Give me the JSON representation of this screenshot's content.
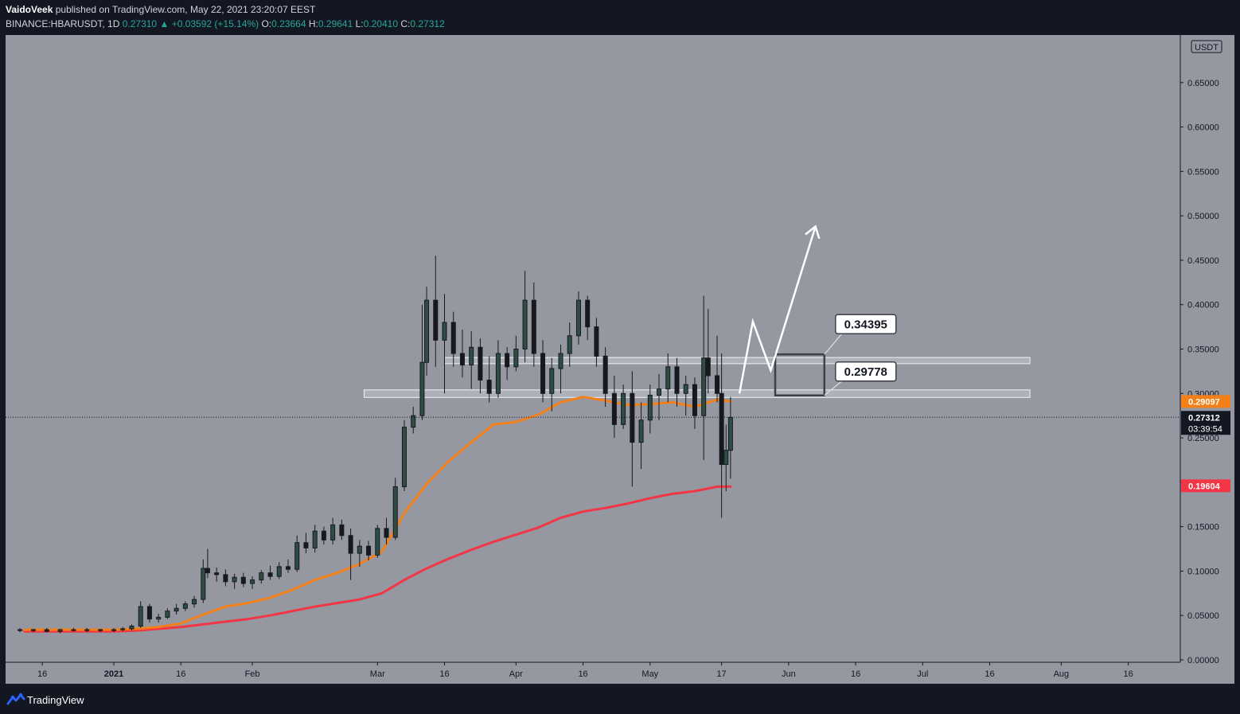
{
  "header": {
    "author": "VaidoVeek",
    "published_text": "published on TradingView.com, May 22, 2021 23:20:07 EEST",
    "symbol": "BINANCE:HBARUSDT, 1D",
    "last": "0.27310",
    "change": "+0.03592 (+15.14%)",
    "o_label": "O:",
    "o": "0.23664",
    "h_label": "H:",
    "h": "0.29641",
    "l_label": "L:",
    "l": "0.20410",
    "c_label": "C:",
    "c": "0.27312"
  },
  "footer": {
    "brand": "TradingView"
  },
  "colors": {
    "background": "#131722",
    "plot": "#9598a1",
    "ma_fast": "#f57f17",
    "ma_slow": "#f23645",
    "candle_up": "#2e4d44",
    "candle_down": "#161a1e",
    "zone": "#dcdfe6",
    "arrow": "#ffffff"
  },
  "chart_data": {
    "type": "candlestick",
    "currency_label": "USDT",
    "ylim": [
      0,
      0.7
    ],
    "y_ticks": [
      "0.00000",
      "0.05000",
      "0.10000",
      "0.15000",
      "0.20000",
      "0.25000",
      "0.30000",
      "0.35000",
      "0.40000",
      "0.45000",
      "0.50000",
      "0.55000",
      "0.60000",
      "0.65000"
    ],
    "x_ticks": [
      {
        "label": "16",
        "day": -16
      },
      {
        "label": "2021",
        "day": 0
      },
      {
        "label": "16",
        "day": 15
      },
      {
        "label": "Feb",
        "day": 31
      },
      {
        "label": "Mar",
        "day": 59
      },
      {
        "label": "16",
        "day": 74
      },
      {
        "label": "Apr",
        "day": 90
      },
      {
        "label": "16",
        "day": 105
      },
      {
        "label": "May",
        "day": 120
      },
      {
        "label": "17",
        "day": 136
      },
      {
        "label": "Jun",
        "day": 151
      },
      {
        "label": "16",
        "day": 166
      },
      {
        "label": "Jul",
        "day": 181
      },
      {
        "label": "16",
        "day": 196
      },
      {
        "label": "Aug",
        "day": 212
      },
      {
        "label": "16",
        "day": 227
      }
    ],
    "price_badges": [
      {
        "name": "ma-fast-price",
        "value": "0.29097",
        "price": 0.29097,
        "color": "#f57f17"
      },
      {
        "name": "last-price",
        "value": "0.27312",
        "price": 0.27312,
        "sub": "03:39:54",
        "color": "#131722"
      },
      {
        "name": "ma-slow-price",
        "value": "0.19604",
        "price": 0.19604,
        "color": "#f23645"
      }
    ],
    "last_price": 0.27312,
    "zones": [
      {
        "name": "resistance-zone",
        "price_low": 0.3335,
        "price_high": 0.3405,
        "day_start": 74,
        "day_end": 205
      },
      {
        "name": "support-zone",
        "price_low": 0.2955,
        "price_high": 0.304,
        "day_start": 56,
        "day_end": 205
      }
    ],
    "target_box": {
      "day_start": 148,
      "day_end": 159,
      "price_low": 0.2978,
      "price_high": 0.344
    },
    "callouts": [
      {
        "name": "callout-upper",
        "label": "0.34395",
        "price": 0.34395
      },
      {
        "name": "callout-lower",
        "label": "0.29778",
        "price": 0.29778
      }
    ],
    "projection_path": [
      [
        140,
        0.3
      ],
      [
        143,
        0.381
      ],
      [
        147,
        0.326
      ],
      [
        157,
        0.488
      ]
    ],
    "ma_fast": [
      [
        -20,
        0.034
      ],
      [
        0,
        0.034
      ],
      [
        5,
        0.035
      ],
      [
        10,
        0.037
      ],
      [
        15,
        0.041
      ],
      [
        20,
        0.051
      ],
      [
        25,
        0.06
      ],
      [
        30,
        0.064
      ],
      [
        35,
        0.07
      ],
      [
        40,
        0.079
      ],
      [
        45,
        0.09
      ],
      [
        50,
        0.098
      ],
      [
        55,
        0.108
      ],
      [
        60,
        0.122
      ],
      [
        65,
        0.165
      ],
      [
        70,
        0.198
      ],
      [
        75,
        0.224
      ],
      [
        80,
        0.245
      ],
      [
        85,
        0.265
      ],
      [
        90,
        0.268
      ],
      [
        95,
        0.276
      ],
      [
        100,
        0.29
      ],
      [
        105,
        0.296
      ],
      [
        110,
        0.292
      ],
      [
        115,
        0.287
      ],
      [
        120,
        0.288
      ],
      [
        125,
        0.29
      ],
      [
        130,
        0.285
      ],
      [
        135,
        0.293
      ],
      [
        138,
        0.291
      ]
    ],
    "ma_slow": [
      [
        -20,
        0.032
      ],
      [
        0,
        0.032
      ],
      [
        5,
        0.033
      ],
      [
        10,
        0.035
      ],
      [
        15,
        0.037
      ],
      [
        20,
        0.04
      ],
      [
        25,
        0.043
      ],
      [
        30,
        0.046
      ],
      [
        35,
        0.05
      ],
      [
        40,
        0.055
      ],
      [
        45,
        0.06
      ],
      [
        50,
        0.064
      ],
      [
        55,
        0.068
      ],
      [
        60,
        0.075
      ],
      [
        65,
        0.09
      ],
      [
        70,
        0.103
      ],
      [
        75,
        0.114
      ],
      [
        80,
        0.124
      ],
      [
        85,
        0.133
      ],
      [
        90,
        0.141
      ],
      [
        95,
        0.149
      ],
      [
        100,
        0.16
      ],
      [
        105,
        0.167
      ],
      [
        110,
        0.171
      ],
      [
        115,
        0.176
      ],
      [
        120,
        0.182
      ],
      [
        125,
        0.187
      ],
      [
        130,
        0.19
      ],
      [
        135,
        0.195
      ],
      [
        138,
        0.195
      ]
    ],
    "candles": [
      [
        -21,
        0.034,
        0.036,
        0.031,
        0.033
      ],
      [
        -18,
        0.033,
        0.035,
        0.031,
        0.034
      ],
      [
        -15,
        0.034,
        0.036,
        0.031,
        0.032
      ],
      [
        -12,
        0.032,
        0.035,
        0.03,
        0.034
      ],
      [
        -9,
        0.034,
        0.036,
        0.032,
        0.033
      ],
      [
        -6,
        0.033,
        0.036,
        0.031,
        0.034
      ],
      [
        -3,
        0.034,
        0.035,
        0.031,
        0.033
      ],
      [
        0,
        0.033,
        0.036,
        0.031,
        0.034
      ],
      [
        2,
        0.034,
        0.037,
        0.032,
        0.035
      ],
      [
        4,
        0.035,
        0.04,
        0.033,
        0.038
      ],
      [
        6,
        0.038,
        0.066,
        0.036,
        0.06
      ],
      [
        8,
        0.06,
        0.063,
        0.042,
        0.046
      ],
      [
        10,
        0.046,
        0.052,
        0.042,
        0.048
      ],
      [
        12,
        0.048,
        0.058,
        0.046,
        0.055
      ],
      [
        14,
        0.055,
        0.063,
        0.051,
        0.058
      ],
      [
        16,
        0.058,
        0.066,
        0.055,
        0.063
      ],
      [
        18,
        0.063,
        0.072,
        0.059,
        0.068
      ],
      [
        20,
        0.068,
        0.113,
        0.064,
        0.103
      ],
      [
        21,
        0.103,
        0.125,
        0.092,
        0.098
      ],
      [
        23,
        0.098,
        0.104,
        0.088,
        0.096
      ],
      [
        25,
        0.096,
        0.102,
        0.083,
        0.088
      ],
      [
        27,
        0.088,
        0.097,
        0.08,
        0.093
      ],
      [
        29,
        0.093,
        0.098,
        0.082,
        0.086
      ],
      [
        31,
        0.086,
        0.094,
        0.08,
        0.09
      ],
      [
        33,
        0.09,
        0.101,
        0.086,
        0.098
      ],
      [
        35,
        0.098,
        0.106,
        0.09,
        0.094
      ],
      [
        37,
        0.094,
        0.11,
        0.091,
        0.105
      ],
      [
        39,
        0.105,
        0.113,
        0.098,
        0.102
      ],
      [
        41,
        0.102,
        0.14,
        0.099,
        0.132
      ],
      [
        43,
        0.132,
        0.143,
        0.12,
        0.126
      ],
      [
        45,
        0.126,
        0.152,
        0.121,
        0.145
      ],
      [
        47,
        0.145,
        0.15,
        0.13,
        0.135
      ],
      [
        49,
        0.135,
        0.16,
        0.13,
        0.152
      ],
      [
        51,
        0.152,
        0.158,
        0.135,
        0.14
      ],
      [
        53,
        0.14,
        0.148,
        0.09,
        0.12
      ],
      [
        55,
        0.12,
        0.135,
        0.105,
        0.128
      ],
      [
        57,
        0.128,
        0.134,
        0.112,
        0.118
      ],
      [
        59,
        0.118,
        0.152,
        0.115,
        0.148
      ],
      [
        61,
        0.148,
        0.16,
        0.13,
        0.138
      ],
      [
        63,
        0.138,
        0.205,
        0.135,
        0.195
      ],
      [
        65,
        0.195,
        0.27,
        0.19,
        0.262
      ],
      [
        67,
        0.262,
        0.285,
        0.255,
        0.275
      ],
      [
        69,
        0.275,
        0.4,
        0.27,
        0.335
      ],
      [
        70,
        0.335,
        0.42,
        0.32,
        0.405
      ],
      [
        72,
        0.405,
        0.455,
        0.33,
        0.36
      ],
      [
        74,
        0.36,
        0.412,
        0.3,
        0.38
      ],
      [
        76,
        0.38,
        0.392,
        0.33,
        0.345
      ],
      [
        78,
        0.345,
        0.372,
        0.318,
        0.332
      ],
      [
        80,
        0.332,
        0.37,
        0.305,
        0.352
      ],
      [
        82,
        0.352,
        0.362,
        0.3,
        0.315
      ],
      [
        84,
        0.315,
        0.342,
        0.29,
        0.3
      ],
      [
        86,
        0.3,
        0.36,
        0.295,
        0.345
      ],
      [
        88,
        0.345,
        0.352,
        0.315,
        0.33
      ],
      [
        90,
        0.33,
        0.365,
        0.325,
        0.35
      ],
      [
        92,
        0.35,
        0.438,
        0.335,
        0.405
      ],
      [
        94,
        0.405,
        0.425,
        0.33,
        0.345
      ],
      [
        96,
        0.345,
        0.36,
        0.29,
        0.3
      ],
      [
        98,
        0.3,
        0.34,
        0.28,
        0.328
      ],
      [
        100,
        0.328,
        0.355,
        0.3,
        0.345
      ],
      [
        102,
        0.345,
        0.38,
        0.33,
        0.365
      ],
      [
        104,
        0.365,
        0.415,
        0.355,
        0.405
      ],
      [
        106,
        0.405,
        0.41,
        0.36,
        0.375
      ],
      [
        108,
        0.375,
        0.385,
        0.33,
        0.342
      ],
      [
        110,
        0.342,
        0.352,
        0.285,
        0.3
      ],
      [
        112,
        0.3,
        0.32,
        0.25,
        0.265
      ],
      [
        114,
        0.265,
        0.31,
        0.26,
        0.3
      ],
      [
        116,
        0.3,
        0.325,
        0.195,
        0.245
      ],
      [
        118,
        0.245,
        0.29,
        0.215,
        0.27
      ],
      [
        120,
        0.27,
        0.31,
        0.255,
        0.298
      ],
      [
        122,
        0.298,
        0.322,
        0.27,
        0.305
      ],
      [
        124,
        0.305,
        0.345,
        0.29,
        0.33
      ],
      [
        126,
        0.33,
        0.34,
        0.285,
        0.3
      ],
      [
        128,
        0.3,
        0.32,
        0.275,
        0.31
      ],
      [
        130,
        0.31,
        0.318,
        0.26,
        0.275
      ],
      [
        132,
        0.275,
        0.41,
        0.225,
        0.34
      ],
      [
        133,
        0.34,
        0.395,
        0.3,
        0.32
      ],
      [
        135,
        0.32,
        0.365,
        0.29,
        0.3
      ],
      [
        136,
        0.3,
        0.345,
        0.16,
        0.22
      ],
      [
        137,
        0.22,
        0.265,
        0.19,
        0.236
      ],
      [
        138,
        0.236,
        0.296,
        0.204,
        0.273
      ]
    ]
  }
}
